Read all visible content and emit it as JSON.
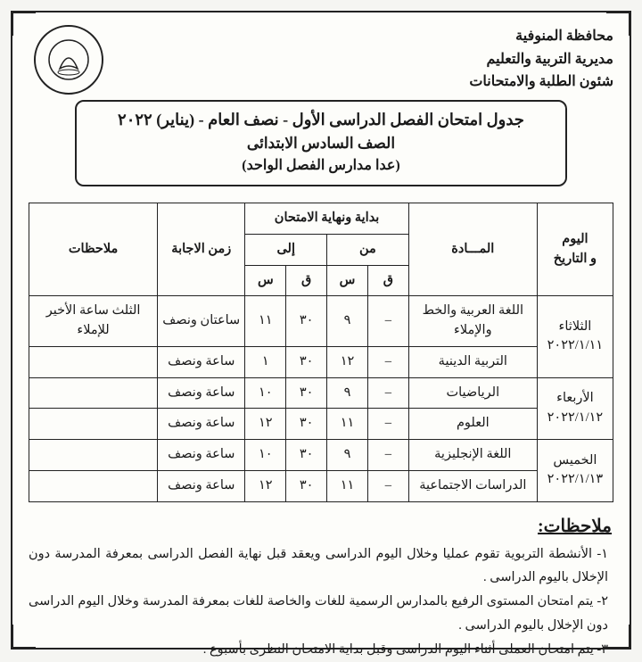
{
  "org": {
    "line1": "محافظة المنوفية",
    "line2": "مديرية التربية والتعليم",
    "line3": "شئون الطلبة والامتحانات"
  },
  "title": {
    "main": "جدول امتحان الفصل الدراسى الأول - نصف العام - (يناير) ٢٠٢٢",
    "grade": "الصف السادس الابتدائى",
    "except": "(عدا مدارس الفصل الواحد)"
  },
  "headers": {
    "date": "اليوم\nو التاريخ",
    "subject": "المـــادة",
    "timing": "بداية ونهاية الامتحان",
    "from": "من",
    "to": "إلى",
    "q": "ق",
    "s": "س",
    "duration": "زمن الاجابة",
    "notes": "ملاحظات"
  },
  "rows": [
    {
      "day": "الثلاثاء",
      "date": "٢٠٢٢/١/١١",
      "sessions": [
        {
          "subject": "اللغة العربية والخط والإملاء",
          "from_q": "–",
          "from_s": "٩",
          "to_q": "٣٠",
          "to_s": "١١",
          "duration": "ساعتان ونصف",
          "note": "الثلث ساعة الأخير للإملاء"
        },
        {
          "subject": "التربية الدينية",
          "from_q": "–",
          "from_s": "١٢",
          "to_q": "٣٠",
          "to_s": "١",
          "duration": "ساعة ونصف",
          "note": ""
        }
      ]
    },
    {
      "day": "الأربعاء",
      "date": "٢٠٢٢/١/١٢",
      "sessions": [
        {
          "subject": "الرياضيات",
          "from_q": "–",
          "from_s": "٩",
          "to_q": "٣٠",
          "to_s": "١٠",
          "duration": "ساعة ونصف",
          "note": ""
        },
        {
          "subject": "العلوم",
          "from_q": "–",
          "from_s": "١١",
          "to_q": "٣٠",
          "to_s": "١٢",
          "duration": "ساعة ونصف",
          "note": ""
        }
      ]
    },
    {
      "day": "الخميس",
      "date": "٢٠٢٢/١/١٣",
      "sessions": [
        {
          "subject": "اللغة الإنجليزية",
          "from_q": "–",
          "from_s": "٩",
          "to_q": "٣٠",
          "to_s": "١٠",
          "duration": "ساعة ونصف",
          "note": ""
        },
        {
          "subject": "الدراسات الاجتماعية",
          "from_q": "–",
          "from_s": "١١",
          "to_q": "٣٠",
          "to_s": "١٢",
          "duration": "ساعة ونصف",
          "note": ""
        }
      ]
    }
  ],
  "notes_title": "ملاحظات:",
  "notes": [
    "١- الأنشطة التربوية تقوم عمليا وخلال اليوم الدراسى ويعقد قبل نهاية الفصل الدراسى بمعرفة المدرسة دون الإخلال باليوم الدراسى .",
    "٢- يتم امتحان المستوى الرفيع بالمدارس الرسمية للغات والخاصة للغات بمعرفة المدرسة وخلال اليوم الدراسى دون الإخلال باليوم الدراسى .",
    "٣- يتم امتحان العملى أثناء اليوم الدراسى وقبل بداية الامتحان النظرى بأسبوع ."
  ]
}
